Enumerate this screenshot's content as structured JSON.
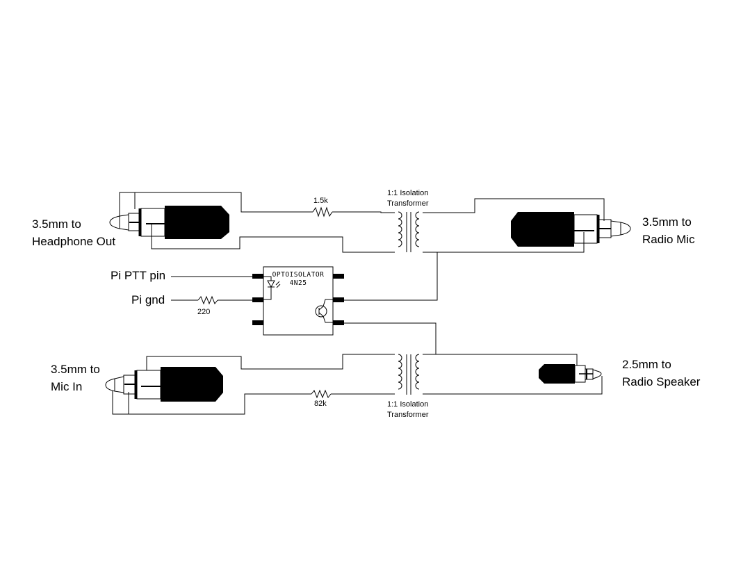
{
  "jacks": {
    "headphone_out": {
      "line1": "3.5mm to",
      "line2": "Headphone Out"
    },
    "radio_mic": {
      "line1": "3.5mm to",
      "line2": "Radio Mic"
    },
    "mic_in": {
      "line1": "3.5mm to",
      "line2": "Mic In"
    },
    "radio_speaker": {
      "line1": "2.5mm to",
      "line2": "Radio Speaker"
    }
  },
  "resistors": {
    "top": "1.5k",
    "ptt": "220",
    "bottom": "82k"
  },
  "transformers": {
    "top": {
      "line1": "1:1 Isolation",
      "line2": "Transformer"
    },
    "bottom": {
      "line1": "1:1 Isolation",
      "line2": "Transformer"
    }
  },
  "optoisolator": {
    "line1": "OPTOISOLATOR",
    "line2": "4N25"
  },
  "pi": {
    "ptt_label": "Pi PTT pin",
    "gnd_label": "Pi gnd"
  }
}
